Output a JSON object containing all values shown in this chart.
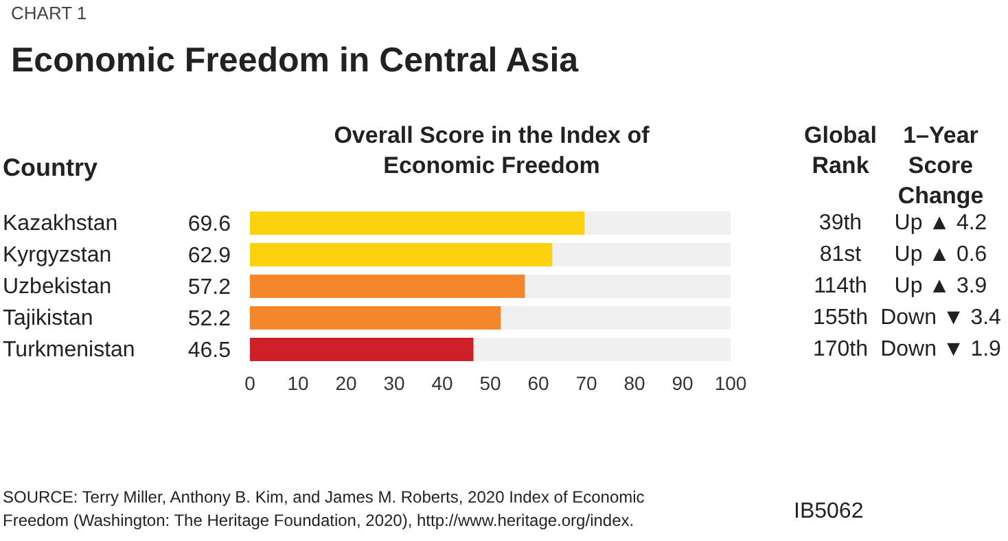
{
  "chart_data": {
    "type": "bar",
    "orientation": "horizontal",
    "subtitle": "CHART 1",
    "title": "Economic Freedom in Central Asia",
    "ylabel": "Country",
    "xlabel": "Overall Score in the Index of Economic Freedom",
    "categories": [
      "Kazakhstan",
      "Kyrgyzstan",
      "Uzbekistan",
      "Tajikistan",
      "Turkmenistan"
    ],
    "values": [
      69.6,
      62.9,
      57.2,
      52.2,
      46.5
    ],
    "colors": [
      "#fcd20f",
      "#fcd20f",
      "#f4862b",
      "#f4862b",
      "#d02027"
    ],
    "data_labels": true,
    "xlim": [
      0,
      100
    ],
    "xticks": [
      0,
      10,
      20,
      30,
      40,
      50,
      60,
      70,
      80,
      90,
      100
    ],
    "grid": false,
    "legend": false,
    "annotations": [
      "Global Rank",
      "1–Year Score Change",
      "39th",
      "Up ▲ 4.2",
      "81st",
      "Up ▲ 0.6",
      "114th",
      "Up ▲ 3.9",
      "155th",
      "Down ▼ 3.4",
      "170th",
      "Down ▼ 1.9",
      "SOURCE: Terry Miller, Anthony B. Kim, and James M. Roberts, 2020 Index of Economic Freedom (Washington: The Heritage Foundation, 2020), http://www.heritage.org/index.",
      "IB5062"
    ]
  }
}
